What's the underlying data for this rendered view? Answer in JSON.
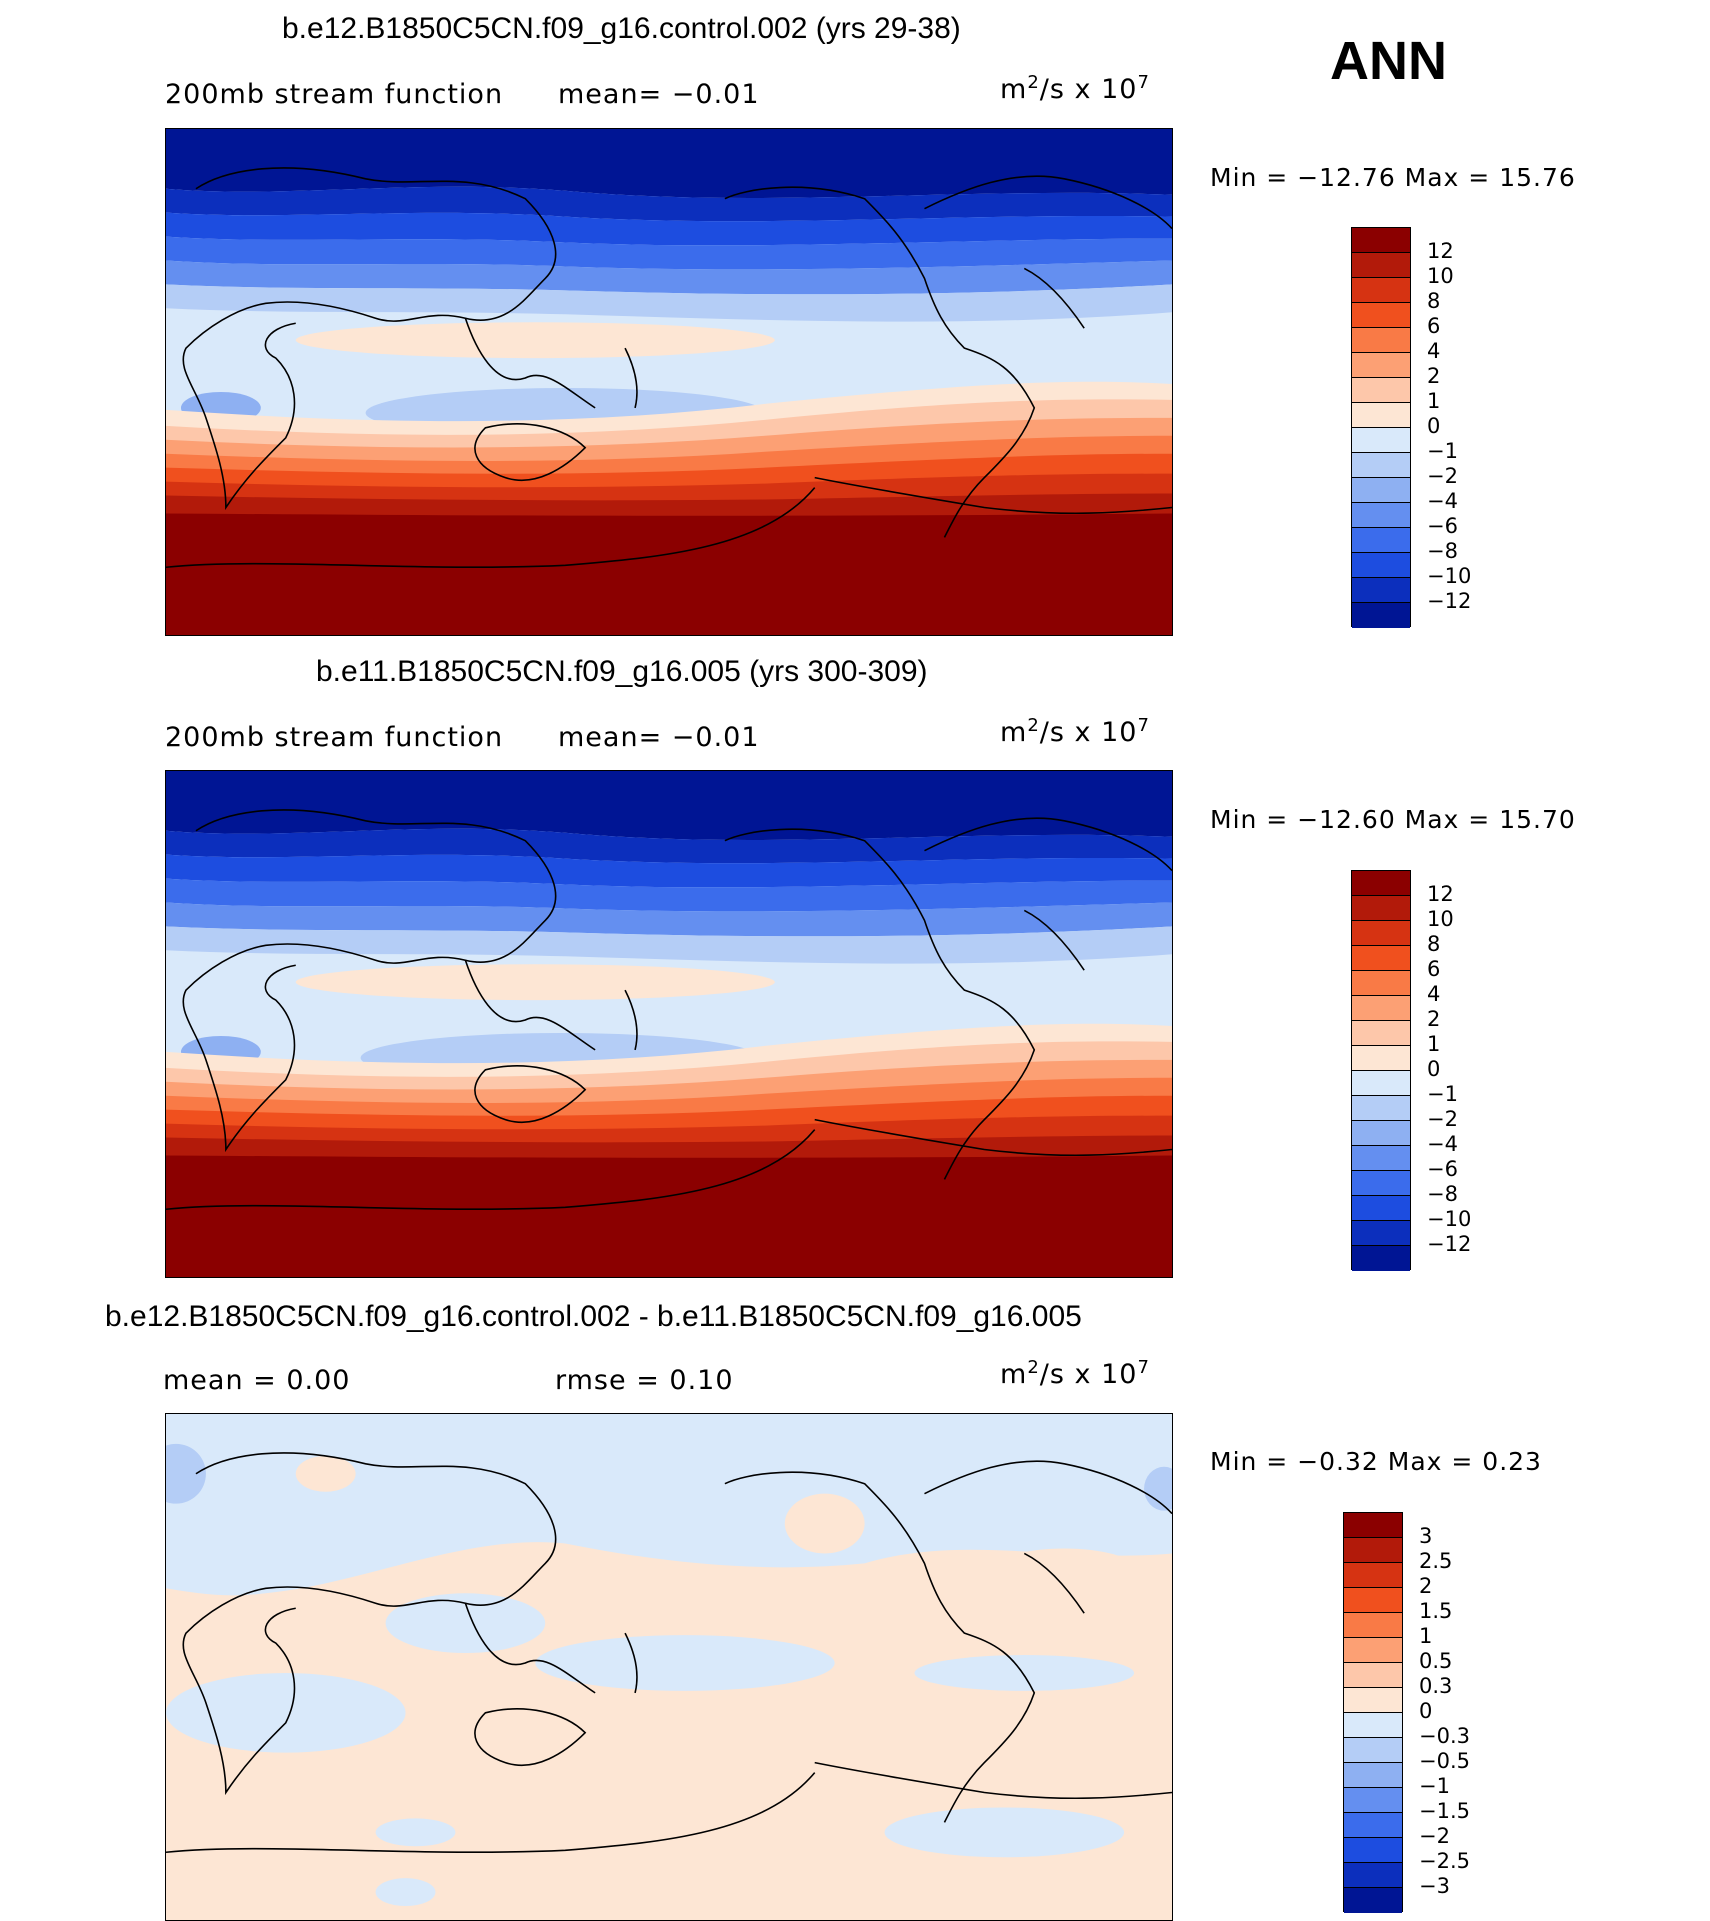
{
  "season": "ANN",
  "panels": [
    {
      "title": "b.e12.B1850C5CN.f09_g16.control.002 (yrs 29-38)",
      "subtitle_left": "200mb stream function",
      "subtitle_mid": "mean=  −0.01",
      "units_base": "m",
      "units_exp1": "2",
      "units_mid": "/s x 10",
      "units_exp2": "7",
      "minmax": "Min = −12.76 Max =  15.76",
      "colorbar": {
        "colors": [
          "#8b0000",
          "#b21a0a",
          "#d63312",
          "#f0501e",
          "#f97a46",
          "#fca074",
          "#fdc7aa",
          "#fde6d4",
          "#d9e9fa",
          "#b4cdf6",
          "#8eb0f2",
          "#648ff0",
          "#3b6cec",
          "#1d4de0",
          "#0c2fbd",
          "#001594"
        ],
        "labels": [
          "12",
          "10",
          "8",
          "6",
          "4",
          "2",
          "1",
          "0",
          "−1",
          "−2",
          "−4",
          "−6",
          "−8",
          "−10",
          "−12"
        ]
      }
    },
    {
      "title": "b.e11.B1850C5CN.f09_g16.005 (yrs 300-309)",
      "subtitle_left": "200mb stream function",
      "subtitle_mid": "mean=  −0.01",
      "units_base": "m",
      "units_exp1": "2",
      "units_mid": "/s x 10",
      "units_exp2": "7",
      "minmax": "Min = −12.60 Max =  15.70",
      "colorbar": {
        "colors": [
          "#8b0000",
          "#b21a0a",
          "#d63312",
          "#f0501e",
          "#f97a46",
          "#fca074",
          "#fdc7aa",
          "#fde6d4",
          "#d9e9fa",
          "#b4cdf6",
          "#8eb0f2",
          "#648ff0",
          "#3b6cec",
          "#1d4de0",
          "#0c2fbd",
          "#001594"
        ],
        "labels": [
          "12",
          "10",
          "8",
          "6",
          "4",
          "2",
          "1",
          "0",
          "−1",
          "−2",
          "−4",
          "−6",
          "−8",
          "−10",
          "−12"
        ]
      }
    },
    {
      "title": "b.e12.B1850C5CN.f09_g16.control.002 - b.e11.B1850C5CN.f09_g16.005",
      "subtitle_left": "mean =   0.00",
      "subtitle_mid": "rmse =   0.10",
      "units_base": "m",
      "units_exp1": "2",
      "units_mid": "/s x 10",
      "units_exp2": "7",
      "minmax": "Min =  −0.32 Max =   0.23",
      "colorbar": {
        "colors": [
          "#8b0000",
          "#b21a0a",
          "#d63312",
          "#f0501e",
          "#f97a46",
          "#fca074",
          "#fdc7aa",
          "#fde6d4",
          "#d9e9fa",
          "#b4cdf6",
          "#8eb0f2",
          "#648ff0",
          "#3b6cec",
          "#1d4de0",
          "#0c2fbd",
          "#001594"
        ],
        "labels": [
          "3",
          "2.5",
          "2",
          "1.5",
          "1",
          "0.5",
          "0.3",
          "0",
          "−0.3",
          "−0.5",
          "−1",
          "−1.5",
          "−2",
          "−2.5",
          "−3"
        ]
      }
    }
  ]
}
